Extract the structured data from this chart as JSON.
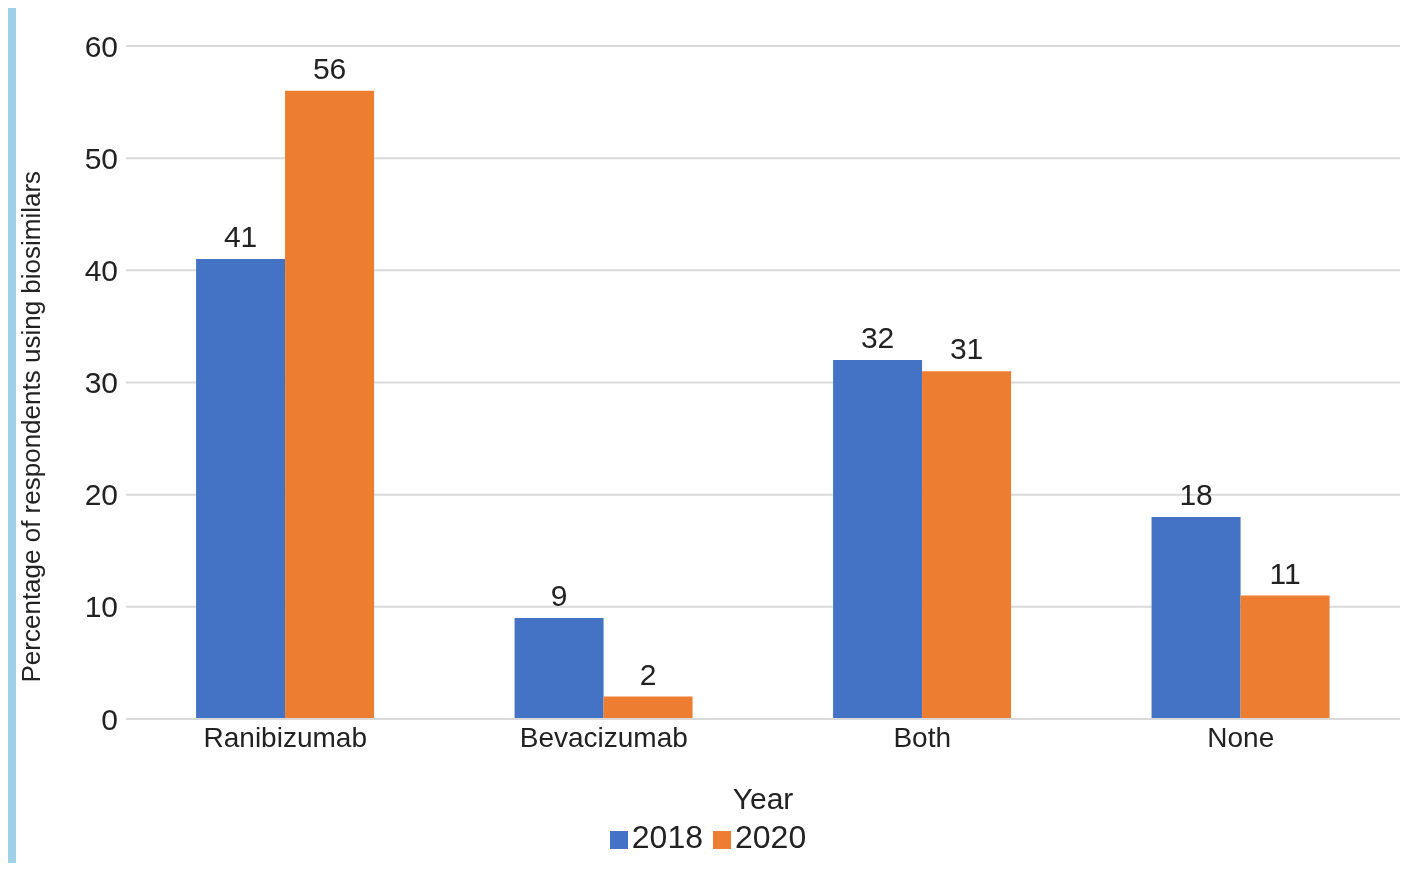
{
  "chart_data": {
    "type": "bar",
    "xlabel": "Year",
    "ylabel": "Percentage of respondents using biosimilars",
    "categories": [
      "Ranibizumab",
      "Bevacizumab",
      "Both",
      "None"
    ],
    "series": [
      {
        "name": "2018",
        "color": "#4472c4",
        "values": [
          41,
          9,
          32,
          18
        ]
      },
      {
        "name": "2020",
        "color": "#ed7d31",
        "values": [
          56,
          2,
          31,
          11
        ]
      }
    ],
    "ylim": [
      0,
      60
    ],
    "yticks": [
      0,
      10,
      20,
      30,
      40,
      50,
      60
    ],
    "grid": "y",
    "legend": "bottom",
    "data_labels": true
  }
}
